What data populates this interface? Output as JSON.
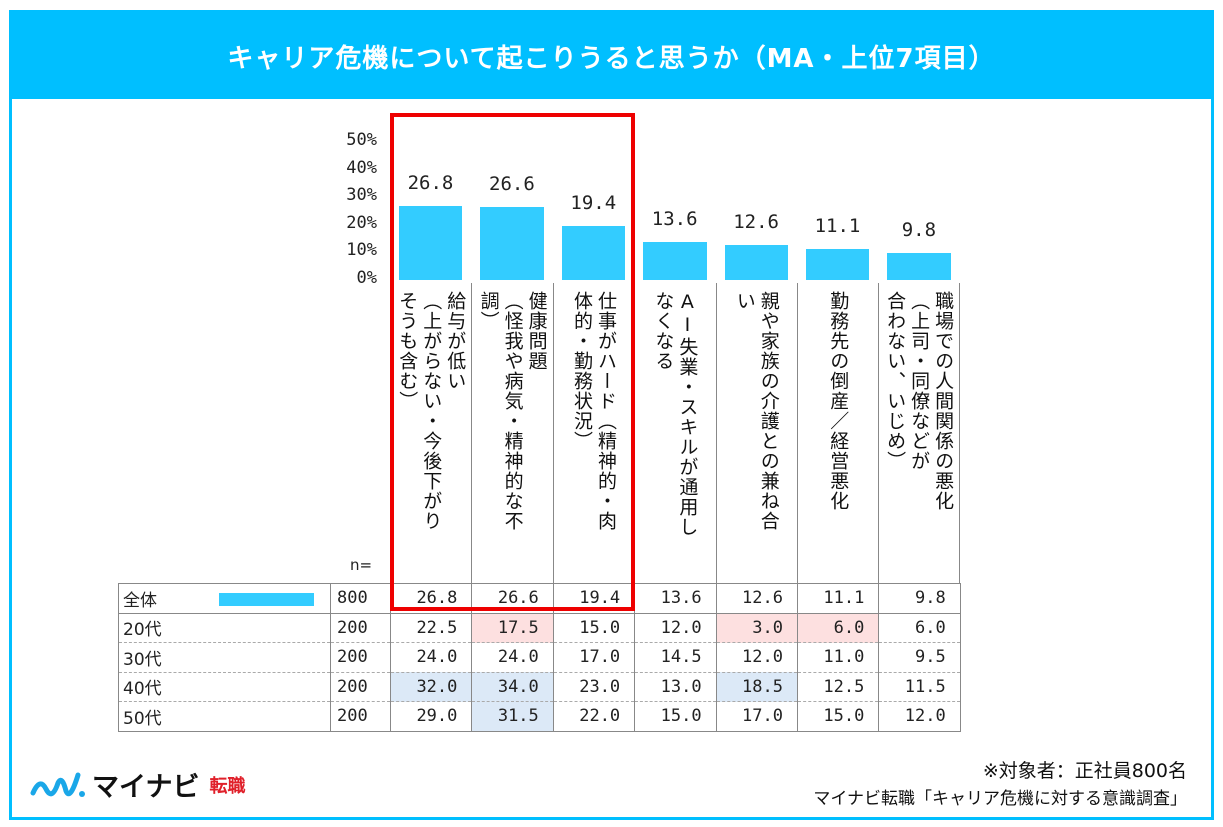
{
  "title": "キャリア危機について起こりうると思うか（MA・上位7項目）",
  "chart_data": {
    "type": "bar",
    "title": "キャリア危機について起こりうると思うか（MA・上位7項目）",
    "ylim": [
      0,
      50
    ],
    "yticks": [
      "50%",
      "40%",
      "30%",
      "20%",
      "10%",
      "0%"
    ],
    "yticks_values": [
      50,
      40,
      30,
      20,
      10,
      0
    ],
    "categories": [
      "給与が低い\n（上がらない・今後下がり\nそうも含む）",
      "健康問題\n（怪我や病気・精神的な不\n調）",
      "仕事がハード（精神的・肉\n体的・勤務状況）",
      "AI失業・スキルが通用し\nなくなる",
      "親や家族の介護との兼ね合\nい",
      "勤務先の倒産／経営悪化",
      "職場での人間関係の悪化\n（上司・同僚などが\n合わない、いじめ）"
    ],
    "values": [
      26.8,
      26.6,
      19.4,
      13.6,
      12.6,
      11.1,
      9.8
    ],
    "value_labels": [
      "26.8",
      "26.6",
      "19.4",
      "13.6",
      "12.6",
      "11.1",
      "9.8"
    ],
    "bar_color": "#33ccff",
    "highlight_box": "first three categories (red outline)"
  },
  "table": {
    "n_header": "n=",
    "rows": [
      {
        "label": "全体",
        "n": "800",
        "values": [
          "26.8",
          "26.6",
          "19.4",
          "13.6",
          "12.6",
          "11.1",
          "9.8"
        ],
        "hl": [
          "",
          "",
          "",
          "",
          "",
          "",
          ""
        ]
      },
      {
        "label": "20代",
        "n": "200",
        "values": [
          "22.5",
          "17.5",
          "15.0",
          "12.0",
          "3.0",
          "6.0",
          "6.0"
        ],
        "hl": [
          "",
          "pink",
          "",
          "",
          "pink",
          "pink",
          ""
        ]
      },
      {
        "label": "30代",
        "n": "200",
        "values": [
          "24.0",
          "24.0",
          "17.0",
          "14.5",
          "12.0",
          "11.0",
          "9.5"
        ],
        "hl": [
          "",
          "",
          "",
          "",
          "",
          "",
          ""
        ]
      },
      {
        "label": "40代",
        "n": "200",
        "values": [
          "32.0",
          "34.0",
          "23.0",
          "13.0",
          "18.5",
          "12.5",
          "11.5"
        ],
        "hl": [
          "blue",
          "blue",
          "",
          "",
          "blue",
          "",
          ""
        ]
      },
      {
        "label": "50代",
        "n": "200",
        "values": [
          "29.0",
          "31.5",
          "22.0",
          "15.0",
          "17.0",
          "15.0",
          "12.0"
        ],
        "hl": [
          "",
          "blue",
          "",
          "",
          "",
          "",
          ""
        ]
      }
    ]
  },
  "colors": {
    "header": "#00bfff",
    "bar": "#33ccff",
    "highlight_box": "#ee0000",
    "low": "#fde0e0",
    "high": "#dce9f7"
  },
  "footer": {
    "target": "※対象者：正社員800名",
    "source": "マイナビ転職「キャリア危機に対する意識調査」"
  },
  "logo": {
    "brand": "マイナビ",
    "sub": "転職"
  }
}
